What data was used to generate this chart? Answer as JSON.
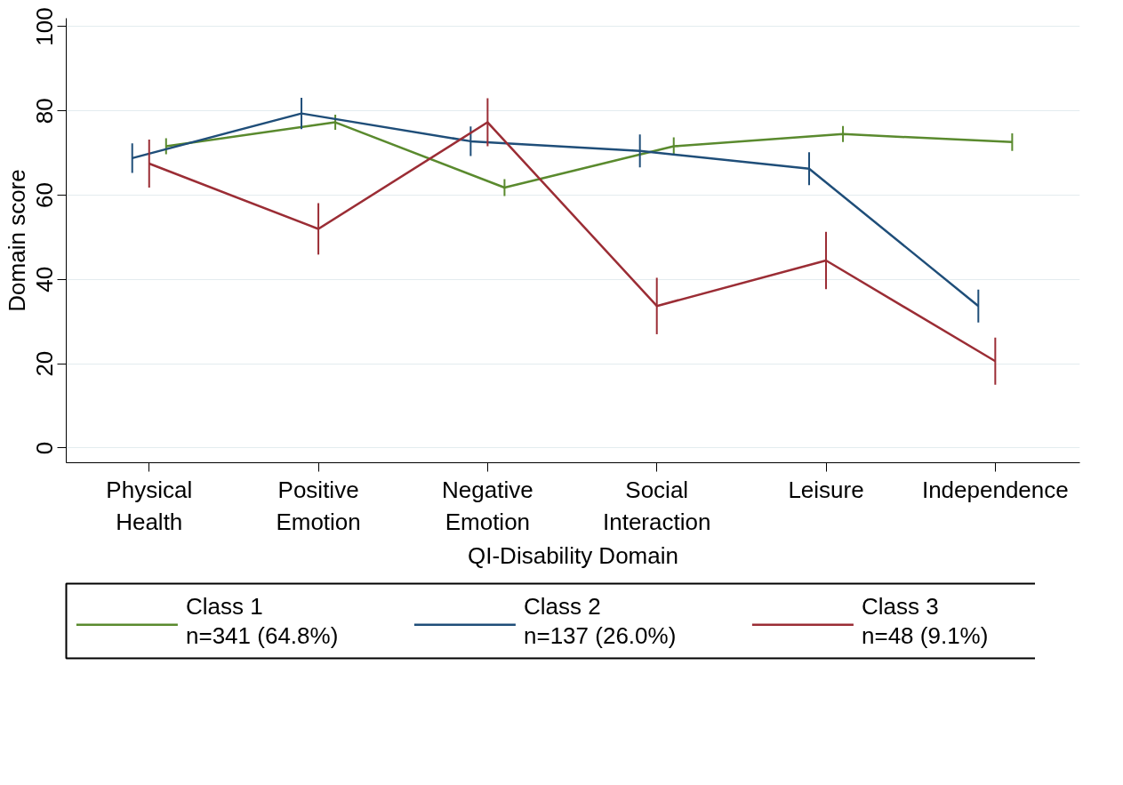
{
  "chart_data": {
    "type": "line",
    "xlabel": "QI-Disability Domain",
    "ylabel": "Domain score",
    "categories": [
      "Physical\nHealth",
      "Positive\nEmotion",
      "Negative\nEmotion",
      "Social\nInteraction",
      "Leisure",
      "Independence"
    ],
    "ylim": [
      -3.5,
      102
    ],
    "yticks": [
      0,
      20,
      40,
      60,
      80,
      100
    ],
    "grid": "y",
    "legend": "bottom",
    "marker": "none",
    "line_style": "solid",
    "series": [
      {
        "name": "Class 1\nn=341 (64.8%)",
        "color": "#5a8a2e",
        "values": [
          71.6,
          77.3,
          61.8,
          71.6,
          74.5,
          72.6
        ],
        "errors": [
          1.9,
          1.8,
          2,
          2.1,
          1.9,
          2.1
        ]
      },
      {
        "name": "Class 2\nn=137 (26.0%)",
        "color": "#1f4e79",
        "values": [
          68.8,
          79.4,
          72.8,
          70.5,
          66.3,
          33.7
        ],
        "errors": [
          3.5,
          3.7,
          3.5,
          3.9,
          3.9,
          3.9
        ]
      },
      {
        "name": "Class 3\nn=48 (9.1%)",
        "color": "#9b2d35",
        "values": [
          67.5,
          52,
          77.3,
          33.7,
          44.5,
          20.6
        ],
        "errors": [
          5.7,
          6.1,
          5.7,
          6.7,
          6.8,
          5.6
        ]
      }
    ]
  }
}
